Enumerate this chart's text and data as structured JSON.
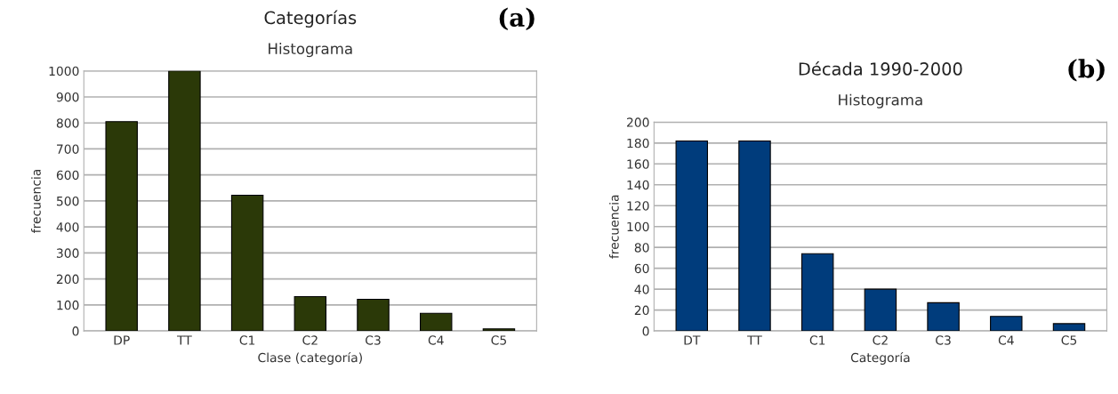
{
  "chart_data": [
    {
      "type": "bar",
      "title": "Categorías",
      "subtitle": "Histograma",
      "xlabel": "Clase (categoría)",
      "ylabel": "frecuencia",
      "annotations": [
        "(a)"
      ],
      "categories": [
        "DP",
        "TT",
        "C1",
        "C2",
        "C3",
        "C4",
        "C5"
      ],
      "values": [
        805,
        1000,
        522,
        132,
        122,
        68,
        8
      ],
      "color": "#2b3908",
      "ylim": [
        0,
        1000
      ],
      "yticks": [
        0,
        100,
        200,
        300,
        400,
        500,
        600,
        700,
        800,
        900,
        1000
      ],
      "grid": "y"
    },
    {
      "type": "bar",
      "title": "Década 1990-2000",
      "subtitle": "Histograma",
      "xlabel": "Categoría",
      "ylabel": "frecuencia",
      "annotations": [
        "(b)"
      ],
      "categories": [
        "DT",
        "TT",
        "C1",
        "C2",
        "C3",
        "C4",
        "C5"
      ],
      "values": [
        182,
        182,
        74,
        40,
        27,
        14,
        7
      ],
      "color": "#003c7c",
      "ylim": [
        0,
        200
      ],
      "yticks": [
        0,
        20,
        40,
        60,
        80,
        100,
        120,
        140,
        160,
        180,
        200
      ],
      "grid": "y"
    }
  ]
}
